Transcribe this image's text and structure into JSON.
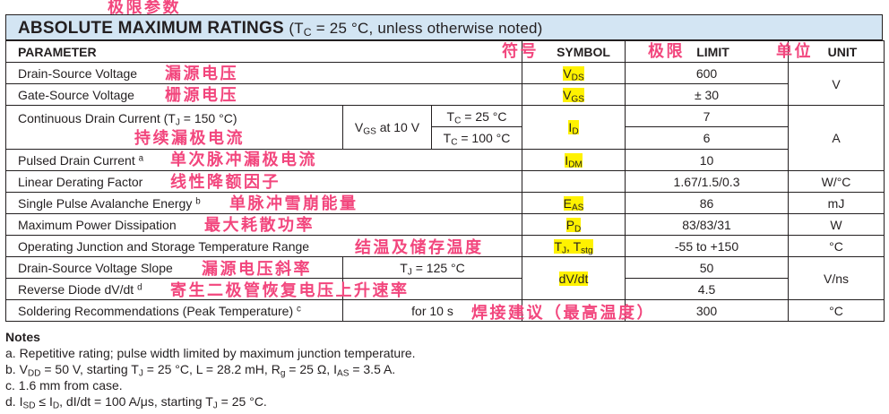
{
  "title": {
    "main": "ABSOLUTE MAXIMUM RATINGS",
    "condition": [
      [
        "(T",
        0
      ],
      [
        "C",
        1
      ],
      [
        " = 25 °C, unless otherwise noted)",
        0
      ]
    ]
  },
  "header": {
    "parameter": "PARAMETER",
    "symbol": "SYMBOL",
    "limit": "LIMIT",
    "unit": "UNIT"
  },
  "rows": {
    "vds": {
      "param": [
        [
          "Drain-Source Voltage",
          0
        ]
      ],
      "symbol": [
        [
          "V",
          0
        ],
        [
          "DS",
          1
        ]
      ],
      "limit": "600"
    },
    "vgs": {
      "param": [
        [
          "Gate-Source Voltage",
          0
        ]
      ],
      "symbol": [
        [
          "V",
          0
        ],
        [
          "GS",
          1
        ]
      ],
      "limit": "± 30"
    },
    "unit_v": "V",
    "id": {
      "param": [
        [
          "Continuous Drain Current (T",
          0
        ],
        [
          "J",
          1
        ],
        [
          " = 150 °C)",
          0
        ]
      ],
      "condition": [
        [
          "V",
          0
        ],
        [
          "GS",
          1
        ],
        [
          " at 10 V",
          0
        ]
      ],
      "tc25": [
        [
          "T",
          0
        ],
        [
          "C",
          1
        ],
        [
          " = 25 °C",
          0
        ]
      ],
      "tc100": [
        [
          "T",
          0
        ],
        [
          "C",
          1
        ],
        [
          " = 100 °C",
          0
        ]
      ],
      "symbol": [
        [
          "I",
          0
        ],
        [
          "D",
          1
        ]
      ],
      "limit_25": "7",
      "limit_100": "6"
    },
    "unit_a": "A",
    "idm": {
      "param": [
        [
          "Pulsed Drain Current ",
          0
        ],
        [
          "a",
          2
        ]
      ],
      "symbol": [
        [
          "I",
          0
        ],
        [
          "DM",
          1
        ]
      ],
      "limit": "10"
    },
    "derating": {
      "param": [
        [
          "Linear Derating Factor",
          0
        ]
      ],
      "limit": "1.67/1.5/0.3",
      "unit": "W/°C"
    },
    "eas": {
      "param": [
        [
          "Single Pulse Avalanche Energy ",
          0
        ],
        [
          "b",
          2
        ]
      ],
      "symbol": [
        [
          "E",
          0
        ],
        [
          "AS",
          1
        ]
      ],
      "limit": "86",
      "unit": "mJ"
    },
    "pd": {
      "param": [
        [
          "Maximum Power Dissipation",
          0
        ]
      ],
      "symbol": [
        [
          "P",
          0
        ],
        [
          "D",
          1
        ]
      ],
      "limit": "83/83/31",
      "unit": "W"
    },
    "tj": {
      "param": [
        [
          "Operating Junction and Storage Temperature Range",
          0
        ]
      ],
      "symbol": [
        [
          "T",
          0
        ],
        [
          "J",
          1
        ],
        [
          ", T",
          0
        ],
        [
          "stg",
          1
        ]
      ],
      "limit": "-55 to +150",
      "unit": "°C"
    },
    "dvdt_slope": {
      "param": [
        [
          "Drain-Source Voltage Slope",
          0
        ]
      ],
      "condition": [
        [
          "T",
          0
        ],
        [
          "J",
          1
        ],
        [
          " = 125 °C",
          0
        ]
      ],
      "limit": "50"
    },
    "dvdt_diode": {
      "param": [
        [
          "Reverse Diode dV/dt ",
          0
        ],
        [
          "d",
          2
        ]
      ],
      "limit": "4.5"
    },
    "dvdt_symbol": [
      [
        "dV/dt",
        0
      ]
    ],
    "unit_vns": "V/ns",
    "solder": {
      "param": [
        [
          "Soldering Recommendations (Peak Temperature) ",
          0
        ],
        [
          "c",
          2
        ]
      ],
      "condition": "for 10 s",
      "limit": "300",
      "unit": "°C"
    }
  },
  "annotations": {
    "title": "极限参数",
    "symbol": "符号",
    "limit": "极限",
    "unit": "单位",
    "vds": "漏源电压",
    "vgs": "栅源电压",
    "id": "持续漏极电流",
    "idm": "单次脉冲漏极电流",
    "derating": "线性降额因子",
    "eas": "单脉冲雪崩能量",
    "pd": "最大耗散功率",
    "tj": "结温及储存温度",
    "slope": "漏源电压斜率",
    "diode": "寄生二极管恢复电压上升速率",
    "solder": "焊接建议（最高温度）"
  },
  "notes": {
    "heading": "Notes",
    "items": [
      [
        [
          "a.  Repetitive rating; pulse width limited by maximum junction temperature.",
          0
        ]
      ],
      [
        [
          "b.  V",
          0
        ],
        [
          "DD",
          1
        ],
        [
          " = 50 V, starting T",
          0
        ],
        [
          "J",
          1
        ],
        [
          " = 25 °C, L = 28.2 mH, R",
          0
        ],
        [
          "g",
          1
        ],
        [
          " = 25 Ω, I",
          0
        ],
        [
          "AS",
          1
        ],
        [
          " = 3.5 A.",
          0
        ]
      ],
      [
        [
          "c.  1.6 mm from case.",
          0
        ]
      ],
      [
        [
          "d.  I",
          0
        ],
        [
          "SD",
          1
        ],
        [
          " ≤ I",
          0
        ],
        [
          "D",
          1
        ],
        [
          ", dI/dt = 100 A/μs, starting T",
          0
        ],
        [
          "J",
          1
        ],
        [
          " = 25 °C.",
          0
        ]
      ]
    ]
  },
  "colors": {
    "title_bg": "#d3e5f3",
    "highlight": "#fff200",
    "annotation": "#f2467d"
  }
}
